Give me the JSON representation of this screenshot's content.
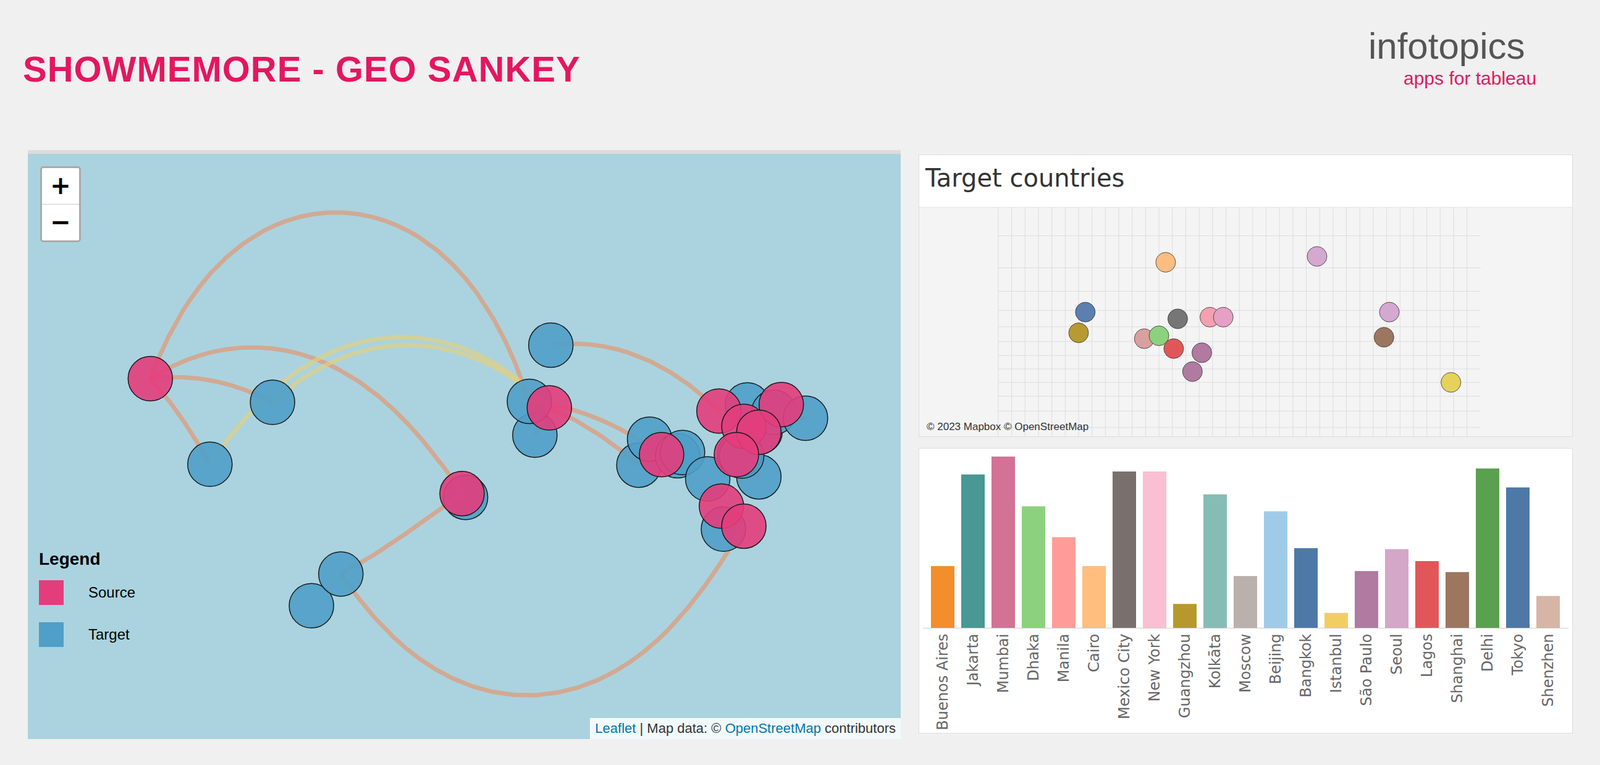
{
  "header": {
    "title": "SHOWMEMORE - GEO SANKEY",
    "logo": {
      "name": "infotopics",
      "tagline": "apps for tableau"
    }
  },
  "map": {
    "zoom_buttons": [
      "+",
      "−"
    ],
    "legend": {
      "title": "Legend",
      "entries": [
        {
          "name": "Source",
          "color": "#e33d7c"
        },
        {
          "name": "Target",
          "color": "#4f9fc9"
        }
      ]
    },
    "attribution": [
      {
        "text": "Leaflet",
        "link": true
      },
      {
        "text": " | Map data: © "
      },
      {
        "text": "OpenStreetMap",
        "link": true
      },
      {
        "text": " contributors"
      }
    ],
    "sources": [
      [
        -123,
        47.5
      ],
      [
        2,
        8
      ],
      [
        37,
        39
      ],
      [
        82,
        23
      ],
      [
        105,
        38
      ],
      [
        115,
        33
      ],
      [
        130,
        40
      ],
      [
        121,
        31
      ],
      [
        112,
        23
      ],
      [
        106,
        3
      ],
      [
        115,
        -5
      ]
    ],
    "targets": [
      [
        -58.4,
        -34.6
      ],
      [
        -46.6,
        -23.5
      ],
      [
        -99.1,
        19.4
      ],
      [
        -74,
        40.7
      ],
      [
        3.4,
        6.5
      ],
      [
        31.2,
        30
      ],
      [
        29,
        41
      ],
      [
        37.6,
        55.8
      ],
      [
        72.9,
        19.1
      ],
      [
        77.2,
        28.6
      ],
      [
        88.4,
        22.6
      ],
      [
        90.4,
        23.8
      ],
      [
        100.5,
        13.8
      ],
      [
        106.8,
        -6.2
      ],
      [
        121,
        14.6
      ],
      [
        121.5,
        31.2
      ],
      [
        116.4,
        39.9
      ],
      [
        113.3,
        23.1
      ],
      [
        114.1,
        22.5
      ],
      [
        127,
        37.6
      ],
      [
        139.7,
        35.7
      ]
    ],
    "flows": [
      {
        "from": 0,
        "to": 3,
        "color": "#e8926a"
      },
      {
        "from": 0,
        "to": 2,
        "color": "#e8926a"
      },
      {
        "from": 0,
        "to": 4,
        "color": "#e8926a"
      },
      {
        "from": 0,
        "to": 6,
        "color": "#e8926a"
      },
      {
        "from": 2,
        "to": 3,
        "color": "#e6cf7a"
      },
      {
        "from": 2,
        "to": 2,
        "color": "#e6cf7a"
      },
      {
        "from": 1,
        "to": 1,
        "color": "#e8926a"
      },
      {
        "from": 10,
        "to": 1,
        "color": "#e8926a"
      },
      {
        "from": 4,
        "to": 7,
        "color": "#e8926a"
      },
      {
        "from": 2,
        "to": 5,
        "color": "#e8926a"
      },
      {
        "from": 2,
        "to": 8,
        "color": "#e8926a"
      },
      {
        "from": 3,
        "to": 6,
        "color": "#e8926a"
      },
      {
        "from": 5,
        "to": 20,
        "color": "#e8926a"
      },
      {
        "from": 8,
        "to": 14,
        "color": "#e8926a"
      }
    ]
  },
  "target_countries": {
    "title": "Target countries",
    "attribution": "© 2023 Mapbox © OpenStreetMap",
    "countries": [
      {
        "lon": 95,
        "lat": 62,
        "color": "#fbbd80"
      },
      {
        "lon": 104,
        "lat": 35,
        "color": "#767676"
      },
      {
        "lon": 79,
        "lat": 22,
        "color": "#d9a09e"
      },
      {
        "lon": 90,
        "lat": 24,
        "color": "#8cd17d"
      },
      {
        "lon": 35,
        "lat": 39,
        "color": "#5b80ae"
      },
      {
        "lon": 30,
        "lat": 26,
        "color": "#b69a32"
      },
      {
        "lon": -98,
        "lat": 39,
        "color": "#d4a8cf"
      },
      {
        "lon": -152,
        "lat": 64,
        "color": "#d4a8cf"
      },
      {
        "lon": -102,
        "lat": 23,
        "color": "#9d7660"
      },
      {
        "lon": -52,
        "lat": -10,
        "color": "#e6d25a"
      },
      {
        "lon": 101,
        "lat": 15,
        "color": "#e15759"
      },
      {
        "lon": 115,
        "lat": -2,
        "color": "#b07aa1"
      },
      {
        "lon": 122,
        "lat": 12,
        "color": "#b07aa1"
      },
      {
        "lon": 128,
        "lat": 36,
        "color": "#f4a0b0"
      },
      {
        "lon": 138,
        "lat": 36,
        "color": "#e6a0c4"
      }
    ]
  },
  "chart_data": {
    "type": "bar",
    "categories": [
      "Buenos Aires",
      "Jakarta",
      "Mumbai",
      "Dhaka",
      "Manila",
      "Cairo",
      "Mexico City",
      "New York",
      "Guangzhou",
      "Kolkāta",
      "Moscow",
      "Beijing",
      "Bangkok",
      "Istanbul",
      "São Paulo",
      "Seoul",
      "Lagos",
      "Shanghai",
      "Delhi",
      "Tokyo",
      "Shenzhen"
    ],
    "values": [
      62,
      154,
      172,
      122,
      91,
      62,
      157,
      157,
      24,
      134,
      52,
      117,
      80,
      15,
      57,
      79,
      67,
      56,
      160,
      141,
      32
    ],
    "colors": [
      "#f28e2b",
      "#499894",
      "#d37295",
      "#8cd17d",
      "#ff9d9a",
      "#ffbe7d",
      "#79706e",
      "#fabfd2",
      "#b6992d",
      "#86bcb6",
      "#bab0ac",
      "#a0cbe8",
      "#4e79a7",
      "#f1ce63",
      "#b07aa1",
      "#d4a6c8",
      "#e15759",
      "#9d7660",
      "#59a14f",
      "#4e79a7",
      "#d7b5a6"
    ],
    "ylim": [
      0,
      175
    ],
    "tick_labels": "x"
  }
}
